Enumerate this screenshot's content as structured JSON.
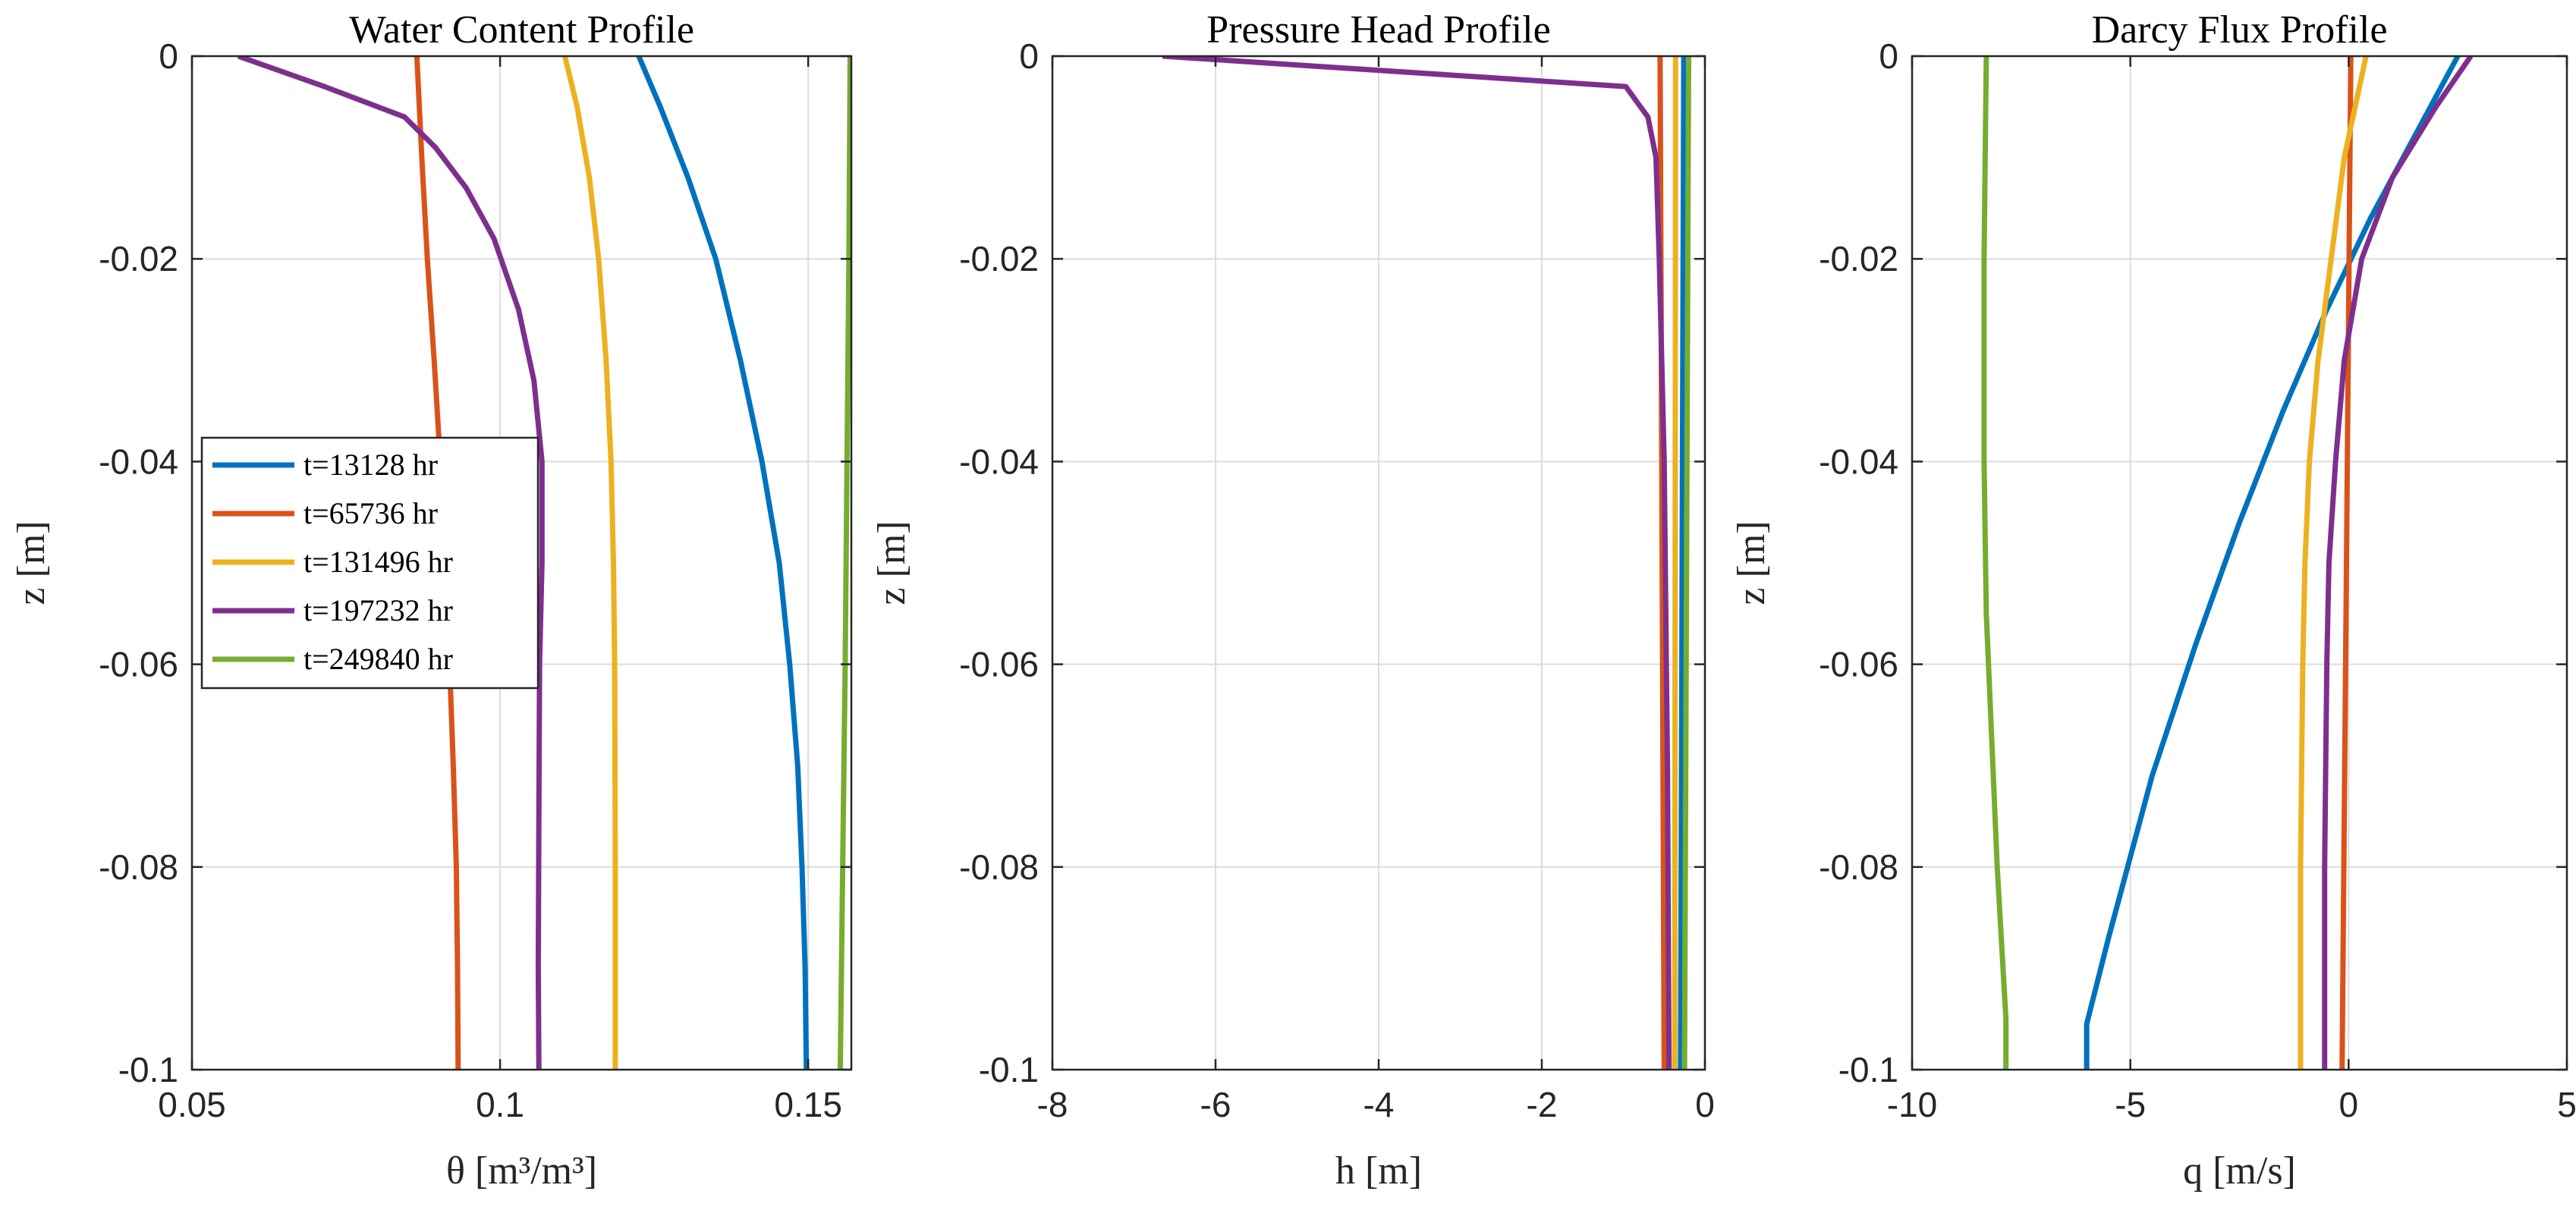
{
  "colors": {
    "blue": "#0072BD",
    "orange": "#D95319",
    "yellow": "#EDB120",
    "purple": "#7E2F8E",
    "green": "#77AC30",
    "grid": "#dcdcdc",
    "axis": "#262626"
  },
  "chart_data": [
    {
      "type": "line",
      "title": "Water Content Profile",
      "xlabel": "θ [m³/m³]",
      "ylabel": "z [m]",
      "xlim": [
        0.05,
        0.157
      ],
      "ylim": [
        -0.1,
        0
      ],
      "xticks": [
        0.05,
        0.1,
        0.15
      ],
      "xtick_labels": [
        "0.05",
        "0.1",
        "0.15"
      ],
      "yticks": [
        0,
        -0.02,
        -0.04,
        -0.06,
        -0.08,
        -0.1
      ],
      "ytick_labels": [
        "0",
        "-0.02",
        "-0.04",
        "-0.06",
        "-0.08",
        "-0.1"
      ],
      "grid": true,
      "legend": {
        "location": "left-middle",
        "entries": [
          "t=13128 hr",
          "t=65736 hr",
          "t=131496 hr",
          "t=197232 hr",
          "t=249840 hr"
        ]
      },
      "series": [
        {
          "name": "t=13128 hr",
          "color": "blue",
          "points": [
            [
              0.1225,
              0
            ],
            [
              0.126,
              -0.005
            ],
            [
              0.1305,
              -0.012
            ],
            [
              0.135,
              -0.02
            ],
            [
              0.139,
              -0.03
            ],
            [
              0.1425,
              -0.04
            ],
            [
              0.1453,
              -0.05
            ],
            [
              0.147,
              -0.06
            ],
            [
              0.1483,
              -0.07
            ],
            [
              0.149,
              -0.08
            ],
            [
              0.1495,
              -0.09
            ],
            [
              0.1497,
              -0.1
            ]
          ]
        },
        {
          "name": "t=65736 hr",
          "color": "orange",
          "points": [
            [
              0.0865,
              0
            ],
            [
              0.0873,
              -0.01
            ],
            [
              0.0882,
              -0.02
            ],
            [
              0.0893,
              -0.03
            ],
            [
              0.0903,
              -0.04
            ],
            [
              0.0912,
              -0.05
            ],
            [
              0.0918,
              -0.06
            ],
            [
              0.0924,
              -0.07
            ],
            [
              0.0929,
              -0.08
            ],
            [
              0.0931,
              -0.09
            ],
            [
              0.0932,
              -0.1
            ]
          ]
        },
        {
          "name": "t=131496 hr",
          "color": "yellow",
          "points": [
            [
              0.1105,
              0
            ],
            [
              0.1125,
              -0.005
            ],
            [
              0.1145,
              -0.012
            ],
            [
              0.116,
              -0.02
            ],
            [
              0.1172,
              -0.03
            ],
            [
              0.118,
              -0.04
            ],
            [
              0.1184,
              -0.05
            ],
            [
              0.1186,
              -0.06
            ],
            [
              0.1187,
              -0.08
            ],
            [
              0.1187,
              -0.1
            ]
          ]
        },
        {
          "name": "t=197232 hr",
          "color": "purple",
          "points": [
            [
              0.0575,
              0
            ],
            [
              0.0715,
              -0.003
            ],
            [
              0.0845,
              -0.006
            ],
            [
              0.0895,
              -0.009
            ],
            [
              0.0945,
              -0.013
            ],
            [
              0.099,
              -0.018
            ],
            [
              0.103,
              -0.025
            ],
            [
              0.1055,
              -0.032
            ],
            [
              0.1068,
              -0.04
            ],
            [
              0.1068,
              -0.05
            ],
            [
              0.1064,
              -0.06
            ],
            [
              0.1063,
              -0.075
            ],
            [
              0.1062,
              -0.09
            ],
            [
              0.1063,
              -0.1
            ]
          ]
        },
        {
          "name": "t=249840 hr",
          "color": "green",
          "points": [
            [
              0.1568,
              0
            ],
            [
              0.1566,
              -0.02
            ],
            [
              0.1563,
              -0.04
            ],
            [
              0.156,
              -0.06
            ],
            [
              0.1556,
              -0.08
            ],
            [
              0.1552,
              -0.1
            ]
          ]
        }
      ]
    },
    {
      "type": "line",
      "title": "Pressure Head Profile",
      "xlabel": "h [m]",
      "ylabel": "z [m]",
      "xlim": [
        -8,
        0
      ],
      "ylim": [
        -0.1,
        0
      ],
      "xticks": [
        -8,
        -6,
        -4,
        -2,
        0
      ],
      "xtick_labels": [
        "-8",
        "-6",
        "-4",
        "-2",
        "0"
      ],
      "yticks": [
        0,
        -0.02,
        -0.04,
        -0.06,
        -0.08,
        -0.1
      ],
      "ytick_labels": [
        "0",
        "-0.02",
        "-0.04",
        "-0.06",
        "-0.08",
        "-0.1"
      ],
      "grid": true,
      "series": [
        {
          "name": "t=13128 hr",
          "color": "blue",
          "points": [
            [
              -0.26,
              0
            ],
            [
              -0.3,
              -0.1
            ]
          ]
        },
        {
          "name": "t=65736 hr",
          "color": "orange",
          "points": [
            [
              -0.55,
              0
            ],
            [
              -0.5,
              -0.1
            ]
          ]
        },
        {
          "name": "t=131496 hr",
          "color": "yellow",
          "points": [
            [
              -0.36,
              0
            ],
            [
              -0.37,
              -0.1
            ]
          ]
        },
        {
          "name": "t=197232 hr",
          "color": "purple",
          "points": [
            [
              -6.65,
              0
            ],
            [
              -0.97,
              -0.003
            ],
            [
              -0.7,
              -0.006
            ],
            [
              -0.6,
              -0.01
            ],
            [
              -0.56,
              -0.02
            ],
            [
              -0.5,
              -0.04
            ],
            [
              -0.46,
              -0.07
            ],
            [
              -0.44,
              -0.1
            ]
          ]
        },
        {
          "name": "t=249840 hr",
          "color": "green",
          "points": [
            [
              -0.2,
              0
            ],
            [
              -0.25,
              -0.1
            ]
          ]
        }
      ]
    },
    {
      "type": "line",
      "title": "Darcy Flux Profile",
      "xlabel": "q [m/s]",
      "ylabel": "z [m]",
      "xlim": [
        -10,
        5
      ],
      "ylim": [
        -0.1,
        0
      ],
      "xticks": [
        -10,
        -5,
        0,
        5
      ],
      "xtick_labels": [
        "-10",
        "-5",
        "0",
        "5"
      ],
      "yticks": [
        0,
        -0.02,
        -0.04,
        -0.06,
        -0.08,
        -0.1
      ],
      "ytick_labels": [
        "0",
        "-0.02",
        "-0.04",
        "-0.06",
        "-0.08",
        "-0.1"
      ],
      "grid": true,
      "series": [
        {
          "name": "t=13128 hr",
          "color": "blue",
          "points": [
            [
              2.5,
              0
            ],
            [
              0.5,
              -0.016
            ],
            [
              -0.5,
              -0.025
            ],
            [
              -1.5,
              -0.035
            ],
            [
              -2.5,
              -0.046
            ],
            [
              -3.5,
              -0.058
            ],
            [
              -4.5,
              -0.071
            ],
            [
              -5.5,
              -0.087
            ],
            [
              -6.0,
              -0.0955
            ],
            [
              -6.0,
              -0.1
            ]
          ]
        },
        {
          "name": "t=65736 hr",
          "color": "orange",
          "points": [
            [
              0.05,
              0
            ],
            [
              -0.05,
              -0.05
            ],
            [
              -0.15,
              -0.1
            ]
          ]
        },
        {
          "name": "t=131496 hr",
          "color": "yellow",
          "points": [
            [
              0.4,
              0
            ],
            [
              -0.1,
              -0.01
            ],
            [
              -0.4,
              -0.02
            ],
            [
              -0.7,
              -0.03
            ],
            [
              -0.9,
              -0.04
            ],
            [
              -1.0,
              -0.05
            ],
            [
              -1.05,
              -0.06
            ],
            [
              -1.1,
              -0.08
            ],
            [
              -1.1,
              -0.1
            ]
          ]
        },
        {
          "name": "t=197232 hr",
          "color": "purple",
          "points": [
            [
              2.8,
              0
            ],
            [
              2.0,
              -0.005
            ],
            [
              1.0,
              -0.012
            ],
            [
              0.3,
              -0.02
            ],
            [
              -0.1,
              -0.03
            ],
            [
              -0.3,
              -0.04
            ],
            [
              -0.45,
              -0.05
            ],
            [
              -0.5,
              -0.06
            ],
            [
              -0.55,
              -0.08
            ],
            [
              -0.55,
              -0.1
            ]
          ]
        },
        {
          "name": "t=249840 hr",
          "color": "green",
          "points": [
            [
              -8.3,
              0
            ],
            [
              -8.35,
              -0.02
            ],
            [
              -8.35,
              -0.04
            ],
            [
              -8.3,
              -0.055
            ],
            [
              -8.2,
              -0.065
            ],
            [
              -8.05,
              -0.08
            ],
            [
              -7.85,
              -0.095
            ],
            [
              -7.85,
              -0.1
            ]
          ]
        }
      ]
    }
  ]
}
